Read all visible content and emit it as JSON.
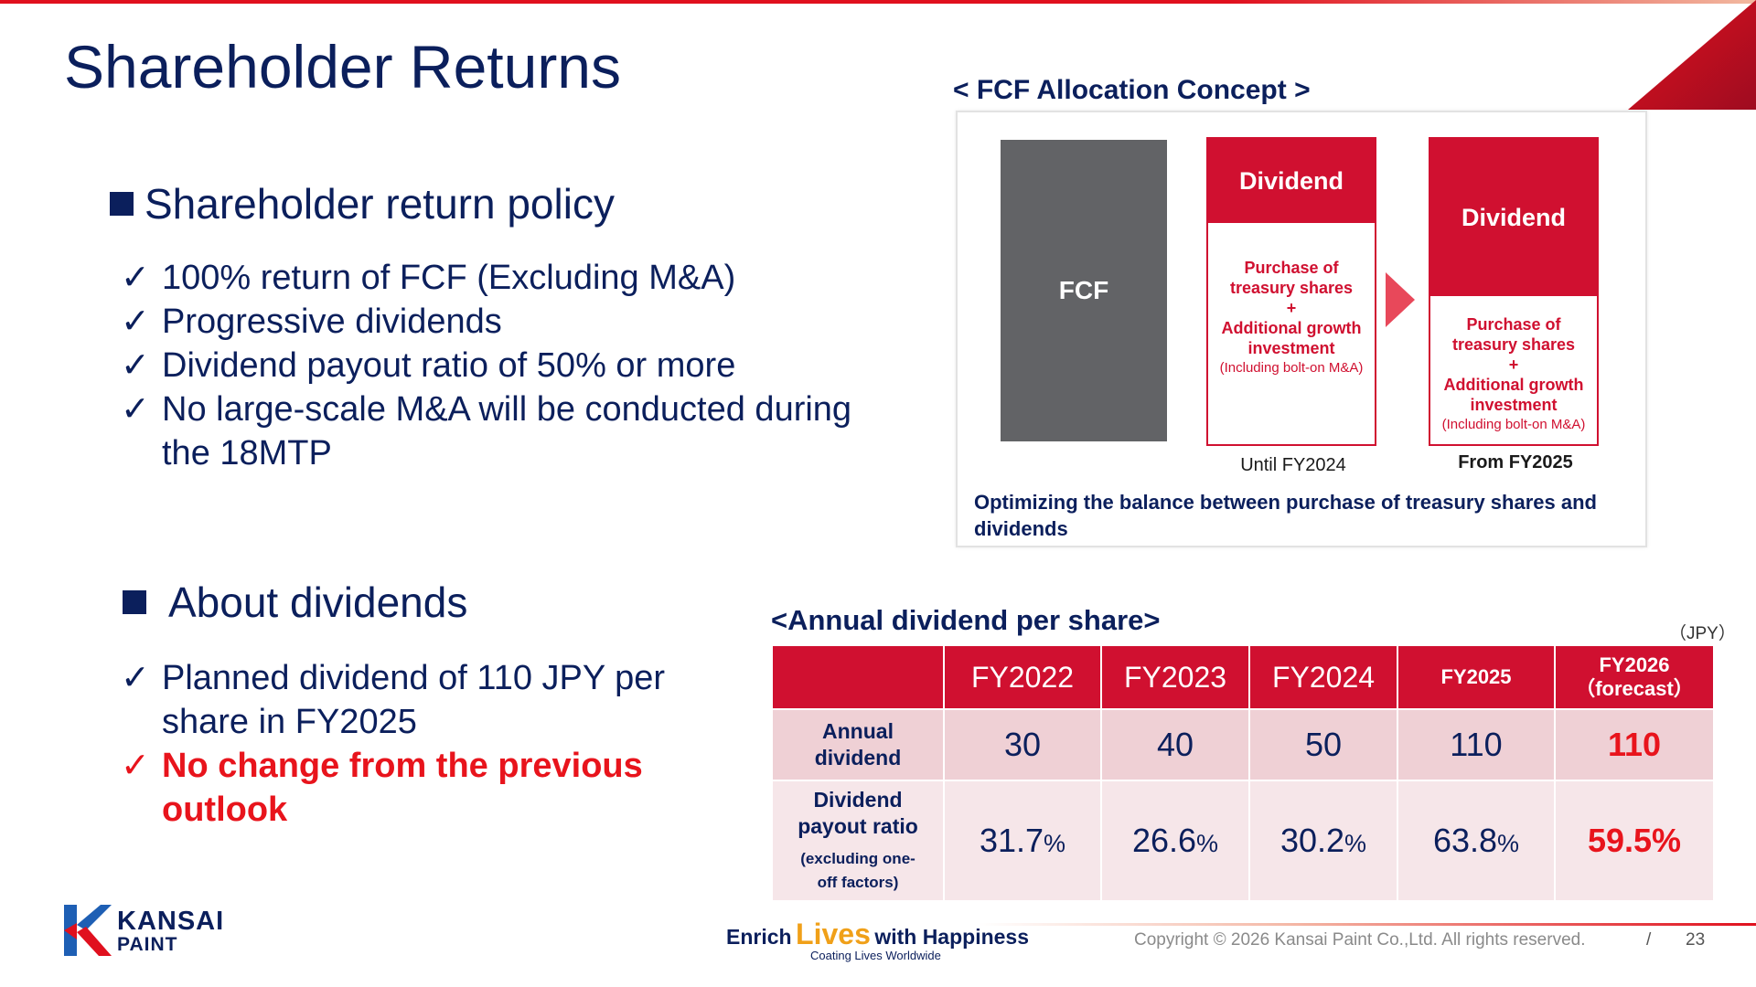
{
  "page_title": "Shareholder Returns",
  "policy": {
    "heading": "Shareholder return policy",
    "check": "✓",
    "items": [
      "100% return of FCF (Excluding M&A)",
      "Progressive dividends",
      "Dividend payout ratio of 50% or more",
      "No large-scale M&A will be conducted during the 18MTP"
    ]
  },
  "dividends": {
    "heading": "About dividends",
    "items": [
      "Planned dividend of 110 JPY per share in FY2025",
      "No change from the previous outlook"
    ]
  },
  "fcf": {
    "heading": "< FCF Allocation Concept >",
    "fcf_label": "FCF",
    "dividend_label": "Dividend",
    "purchase_line1": "Purchase of",
    "purchase_line2": "treasury shares",
    "plus": "+",
    "growth_line1": "Additional growth",
    "growth_line2": "investment",
    "bolt_on": "(Including bolt-on M&A)",
    "until_label": "Until FY2024",
    "from_label": "From FY2025",
    "note": "Optimizing the balance between purchase of treasury shares and dividends"
  },
  "table": {
    "heading": "<Annual dividend per share>",
    "unit": "（JPY）",
    "columns": [
      "FY2022",
      "FY2023",
      "FY2024",
      "FY2025"
    ],
    "forecast_col_line1": "FY2026",
    "forecast_col_line2": "（forecast）",
    "row1_label_line1": "Annual",
    "row1_label_line2": "dividend",
    "row1_values": [
      "30",
      "40",
      "50",
      "110"
    ],
    "row1_forecast": "110",
    "row2_label_line1": "Dividend",
    "row2_label_line2": "payout ratio",
    "row2_label_sub1": "(excluding one-",
    "row2_label_sub2": "off factors)",
    "row2_values": [
      "31.7",
      "26.6",
      "30.2",
      "63.8"
    ],
    "pct": "%",
    "row2_forecast": "59.5%"
  },
  "footer": {
    "logo_line1": "KANSAI",
    "logo_line2": "PAINT",
    "tag_enrich": "Enrich",
    "tag_lives": "Lives",
    "tag_with": "with Happiness",
    "tag_sub": "Coating Lives Worldwide",
    "copyright": "Copyright © 2026 Kansai Paint Co.,Ltd. All rights reserved.",
    "separator": "/",
    "page_number": "23"
  }
}
